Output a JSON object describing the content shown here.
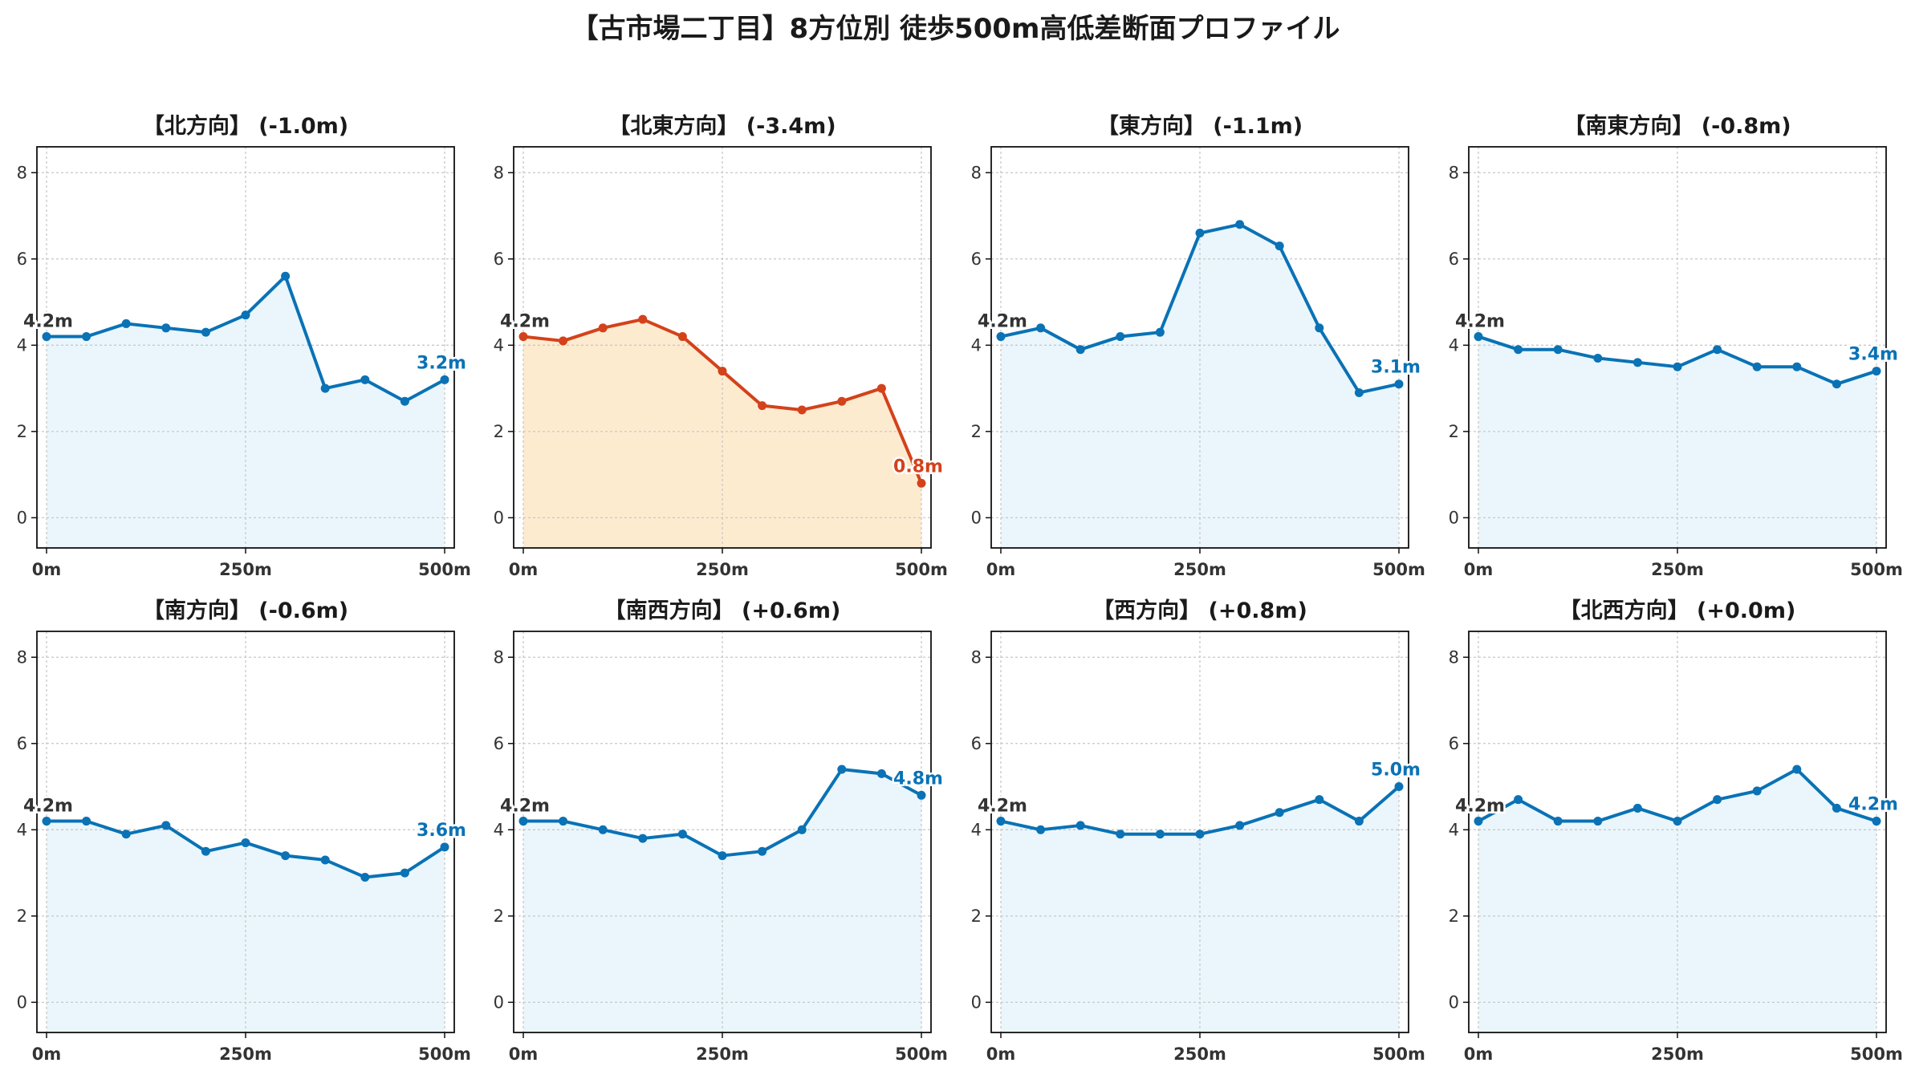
{
  "title": "【古市場二丁目】8方位別 徒歩500m高低差断面プロファイル",
  "colors": {
    "normal_line": "#0a72b5",
    "normal_fill": "#eaf6fc",
    "highlight_line": "#d3421b",
    "highlight_fill": "#fdebd0",
    "start_label": "#333333",
    "grid": "#c8c8c8"
  },
  "chart_data": [
    {
      "type": "area",
      "title": "【北方向】 (-1.0m)",
      "highlight": false,
      "x": [
        0,
        50,
        100,
        150,
        200,
        250,
        300,
        350,
        400,
        450,
        500
      ],
      "y": [
        4.2,
        4.2,
        4.5,
        4.4,
        4.3,
        4.7,
        5.6,
        3.0,
        3.2,
        2.7,
        3.2
      ],
      "start_label": "4.2m",
      "end_label": "3.2m",
      "xticks": [
        "0m",
        "250m",
        "500m"
      ],
      "yticks": [
        "0",
        "2",
        "4",
        "6",
        "8"
      ],
      "xlim": [
        0,
        500
      ],
      "ylim": [
        -0.7,
        8.6
      ],
      "grid": true
    },
    {
      "type": "area",
      "title": "【北東方向】 (-3.4m)",
      "highlight": true,
      "x": [
        0,
        50,
        100,
        150,
        200,
        250,
        300,
        350,
        400,
        450,
        500
      ],
      "y": [
        4.2,
        4.1,
        4.4,
        4.6,
        4.2,
        3.4,
        2.6,
        2.5,
        2.7,
        3.0,
        0.8
      ],
      "start_label": "4.2m",
      "end_label": "0.8m",
      "xticks": [
        "0m",
        "250m",
        "500m"
      ],
      "yticks": [
        "0",
        "2",
        "4",
        "6",
        "8"
      ],
      "xlim": [
        0,
        500
      ],
      "ylim": [
        -0.7,
        8.6
      ],
      "grid": true
    },
    {
      "type": "area",
      "title": "【東方向】 (-1.1m)",
      "highlight": false,
      "x": [
        0,
        50,
        100,
        150,
        200,
        250,
        300,
        350,
        400,
        450,
        500
      ],
      "y": [
        4.2,
        4.4,
        3.9,
        4.2,
        4.3,
        6.6,
        6.8,
        6.3,
        4.4,
        2.9,
        3.1
      ],
      "start_label": "4.2m",
      "end_label": "3.1m",
      "xticks": [
        "0m",
        "250m",
        "500m"
      ],
      "yticks": [
        "0",
        "2",
        "4",
        "6",
        "8"
      ],
      "xlim": [
        0,
        500
      ],
      "ylim": [
        -0.7,
        8.6
      ],
      "grid": true
    },
    {
      "type": "area",
      "title": "【南東方向】 (-0.8m)",
      "highlight": false,
      "x": [
        0,
        50,
        100,
        150,
        200,
        250,
        300,
        350,
        400,
        450,
        500
      ],
      "y": [
        4.2,
        3.9,
        3.9,
        3.7,
        3.6,
        3.5,
        3.9,
        3.5,
        3.5,
        3.1,
        3.4
      ],
      "start_label": "4.2m",
      "end_label": "3.4m",
      "xticks": [
        "0m",
        "250m",
        "500m"
      ],
      "yticks": [
        "0",
        "2",
        "4",
        "6",
        "8"
      ],
      "xlim": [
        0,
        500
      ],
      "ylim": [
        -0.7,
        8.6
      ],
      "grid": true
    },
    {
      "type": "area",
      "title": "【南方向】 (-0.6m)",
      "highlight": false,
      "x": [
        0,
        50,
        100,
        150,
        200,
        250,
        300,
        350,
        400,
        450,
        500
      ],
      "y": [
        4.2,
        4.2,
        3.9,
        4.1,
        3.5,
        3.7,
        3.4,
        3.3,
        2.9,
        3.0,
        3.6
      ],
      "start_label": "4.2m",
      "end_label": "3.6m",
      "xticks": [
        "0m",
        "250m",
        "500m"
      ],
      "yticks": [
        "0",
        "2",
        "4",
        "6",
        "8"
      ],
      "xlim": [
        0,
        500
      ],
      "ylim": [
        -0.7,
        8.6
      ],
      "grid": true
    },
    {
      "type": "area",
      "title": "【南西方向】 (+0.6m)",
      "highlight": false,
      "x": [
        0,
        50,
        100,
        150,
        200,
        250,
        300,
        350,
        400,
        450,
        500
      ],
      "y": [
        4.2,
        4.2,
        4.0,
        3.8,
        3.9,
        3.4,
        3.5,
        4.0,
        5.4,
        5.3,
        4.8
      ],
      "start_label": "4.2m",
      "end_label": "4.8m",
      "xticks": [
        "0m",
        "250m",
        "500m"
      ],
      "yticks": [
        "0",
        "2",
        "4",
        "6",
        "8"
      ],
      "xlim": [
        0,
        500
      ],
      "ylim": [
        -0.7,
        8.6
      ],
      "grid": true
    },
    {
      "type": "area",
      "title": "【西方向】 (+0.8m)",
      "highlight": false,
      "x": [
        0,
        50,
        100,
        150,
        200,
        250,
        300,
        350,
        400,
        450,
        500
      ],
      "y": [
        4.2,
        4.0,
        4.1,
        3.9,
        3.9,
        3.9,
        4.1,
        4.4,
        4.7,
        4.2,
        5.0
      ],
      "start_label": "4.2m",
      "end_label": "5.0m",
      "xticks": [
        "0m",
        "250m",
        "500m"
      ],
      "yticks": [
        "0",
        "2",
        "4",
        "6",
        "8"
      ],
      "xlim": [
        0,
        500
      ],
      "ylim": [
        -0.7,
        8.6
      ],
      "grid": true
    },
    {
      "type": "area",
      "title": "【北西方向】 (+0.0m)",
      "highlight": false,
      "x": [
        0,
        50,
        100,
        150,
        200,
        250,
        300,
        350,
        400,
        450,
        500
      ],
      "y": [
        4.2,
        4.7,
        4.2,
        4.2,
        4.5,
        4.2,
        4.7,
        4.9,
        5.4,
        4.5,
        4.2
      ],
      "start_label": "4.2m",
      "end_label": "4.2m",
      "xticks": [
        "0m",
        "250m",
        "500m"
      ],
      "yticks": [
        "0",
        "2",
        "4",
        "6",
        "8"
      ],
      "xlim": [
        0,
        500
      ],
      "ylim": [
        -0.7,
        8.6
      ],
      "grid": true
    }
  ]
}
